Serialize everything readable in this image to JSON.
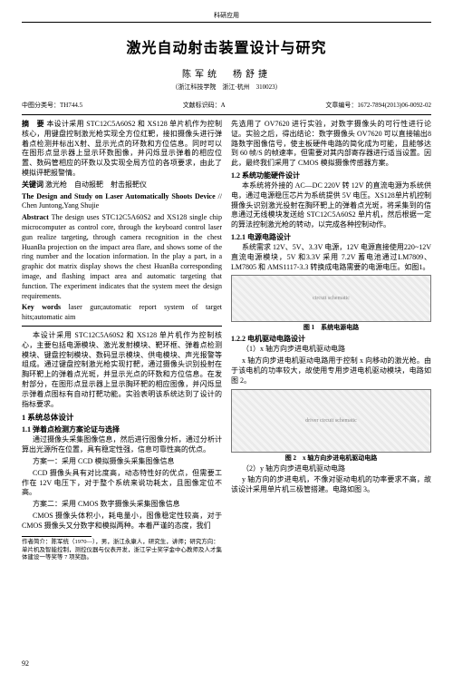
{
  "header": {
    "category": "科研应用"
  },
  "title": "激光自动射击装置设计与研究",
  "authors": "陈军统　杨舒捷",
  "affiliation": "（浙江科技学院　浙江·杭州　310023）",
  "meta": {
    "clc": "中图分类号：TH744.5",
    "doc_code": "文献标识码：A",
    "article_id": "文章编号：1672-7894(2013)06-0092-02"
  },
  "abstract_cn": {
    "label": "摘　要",
    "text": "本设计采用 STC12C5A60S2 和 XS128 单片机作为控制核心，用键盘控制激光枪实现全方位红靶，接扣摄像头进行弹着点检测并标出X射、显示光点的环数和方位信息。同时可以在图形点显示器上显示环数图像，并闪烁显示弹着的相应位置、数码管相应的环数以及实现全局方位的各项要求，由此了模拟评靶报警情。"
  },
  "keywords_cn": {
    "label": "关键词",
    "text": "激光枪　自动报靶　射击报靶仪"
  },
  "title_en": "The Design and Study on Laser Automatically Shoots Device",
  "authors_en": "// Chen Juntong,Yang Shujie",
  "abstract_en": {
    "label": "Abstract",
    "text": "The design uses STC12C5A60S2 and XS128 single chip microcomputer as control core, through the keyboard control laser gun realize targeting, through camera recognition in the chest HuanBa projection on the impact area flare, and shows some of the ring number and the location information. In the play a part, in a graphic dot matrix display shows the chest HuanBa corresponding image, and flashing impact area and automatic targeting that function. The experiment indicates that the system meet the design requirements."
  },
  "keywords_en": {
    "label": "Key words",
    "text": "laser gun;automatic report system of target hits;automatic aim"
  },
  "body": {
    "intro": "本设计采用 STC12C5A60S2 和 XS128 单片机作为控制核心，主要包括电源模块、激光发射模块、靶环框、弹着点检测模块、键盘控制模块、数码显示模块、供电模块、声光报警等组成。通过键盘控制激光枪实现打靶，通过摄像头识别投射在胸环靶上的弹着点光斑，并显示光点的环数和方位信息。在发射部分，在图形点显示器上显示胸环靶的相应图像，并闪烁显示弹着点图标有自动打靶功能。实验表明该系统达到了设计的指标要求。",
    "s1": "1 系统总体设计",
    "s11": "1.1 弹着点检测方案论证与选择",
    "p11a": "通过摄像头采集图像信息，然后进行图像分析，通过分析计算出光源所在位置，具有稳定性强，信息可靠性高的优点。",
    "p11b": "方案一：采用 CCD 模拟摄像头采集图像信息",
    "p11c": "CCD 摄像头具有对比度高，动态特性好的优点，但需要工作在 12V 电压下，对于整个系统来说功耗太，且图像定位不高。",
    "p11d": "方案二：采用 CMOS 数字摄像头采集图像信息",
    "p11e": "CMOS 摄像头体积小，耗电量小，图像稳定性较高，对于CMOS 摄像头又分数字和模拟两种。本着严谨的态度，我们",
    "p_right_top": "先选用了 OV7620 进行实验，对数字摄像头的可行性进行论证。实验之后，得出结论：数字摄像头 OV7620 可以直接输出8路数字图像信号，使主板硬件电路的简化成为可能，且能够达到 60 帧/S 的帧速率，但需要对其内部寄存器进行适当设置。因此，最终我们采用了 CMOS 模拟摄像传感器方案。",
    "s12": "1.2 系统功能硬件设计",
    "p12a": "本系统将外接的 AC—DC 220V 转 12V 的直流电源为系统供电，通过电源稳压芯片为系统提供 5V 电压。XS128单片机控制摄像头识别激光投射在胸环靶上的弹着点光斑，将采集到的信息通过无线模块发送给 STC12C5A60S2 单片机，然后根据一定的算法控制激光枪的转动，以完成各种控制动作。",
    "s121": "1.2.1 电源电路设计",
    "p121": "系统需求 12V、5V、3.3V 电源，12V 电源直接使用220~12V 直流电源模块，5V 和3.3V 采用 7.2V 蓄电池通过LM7809、LM7805 和 AMS1117-3.3 转换成电路需要的电源电压。如图1。",
    "fig1_cap": "图 1　系统电源电路",
    "s122": "1.2.2 电机驱动电路设计",
    "p122a": "（1）x 轴方向步进电机驱动电路",
    "p122b": "x 轴方向步进电机驱动电路用于控制 x 向移动的激光枪。由于该电机的功率较大，故使用专用步进电机驱动模块，电路如图 2。",
    "fig2_cap": "图 2　x 轴方向步进电机驱动电路",
    "p122c": "（2）y 轴方向步进电机驱动电路",
    "p122d": "y 轴方向的步进电机，不像对驱动电机的功率要求不高，故该设计采用单片机三极管搭建。电路如图 3。"
  },
  "footnote": {
    "label": "作者简介：",
    "text": "陈军统（1970—），男，浙江永康人，研究生，讲师；研究方向：单片机及智能控制，测控仪器与仪表开发，浙江学士奖学金中心教师及人才集体建设一等奖等 7 项奖励。"
  },
  "page_number": "92",
  "figures": {
    "fig1_placeholder": "circuit schematic",
    "fig2_placeholder": "driver circuit schematic"
  }
}
